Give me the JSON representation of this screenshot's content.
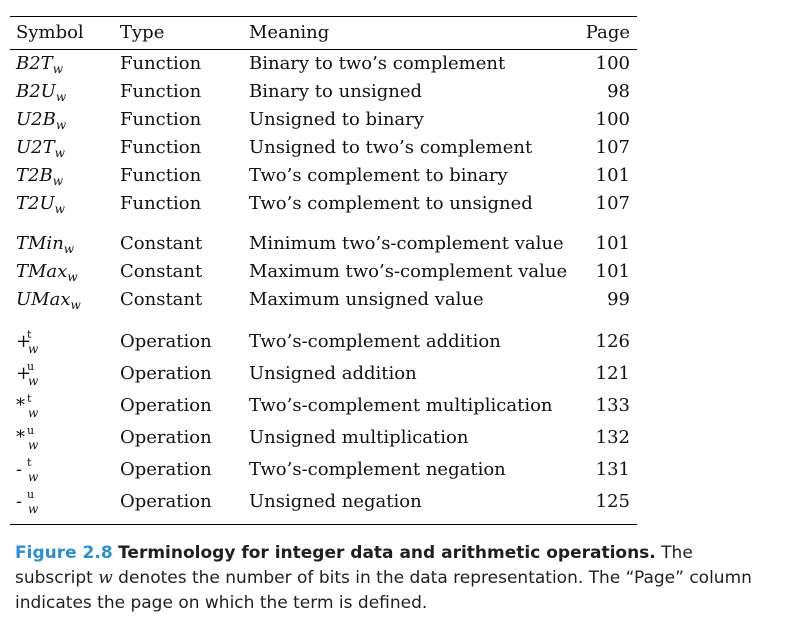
{
  "header": {
    "symbol": "Symbol",
    "type": "Type",
    "meaning": "Meaning",
    "page": "Page"
  },
  "functions": [
    {
      "base": "B2T",
      "sub": "w",
      "type": "Function",
      "meaning": "Binary to two’s complement",
      "page": "100"
    },
    {
      "base": "B2U",
      "sub": "w",
      "type": "Function",
      "meaning": "Binary to unsigned",
      "page": "98"
    },
    {
      "base": "U2B",
      "sub": "w",
      "type": "Function",
      "meaning": "Unsigned to binary",
      "page": "100"
    },
    {
      "base": "U2T",
      "sub": "w",
      "type": "Function",
      "meaning": "Unsigned to two’s complement",
      "page": "107"
    },
    {
      "base": "T2B",
      "sub": "w",
      "type": "Function",
      "meaning": "Two’s complement to binary",
      "page": "101"
    },
    {
      "base": "T2U",
      "sub": "w",
      "type": "Function",
      "meaning": "Two’s complement to unsigned",
      "page": "107"
    }
  ],
  "constants": [
    {
      "base": "TMin",
      "sub": "w",
      "type": "Constant",
      "meaning": "Minimum two’s-complement value",
      "page": "101"
    },
    {
      "base": "TMax",
      "sub": "w",
      "type": "Constant",
      "meaning": "Maximum two’s-complement value",
      "page": "101"
    },
    {
      "base": "UMax",
      "sub": "w",
      "type": "Constant",
      "meaning": "Maximum unsigned value",
      "page": "99"
    }
  ],
  "operations": [
    {
      "base": "+",
      "sup": "t",
      "sub": "w",
      "type": "Operation",
      "meaning": "Two’s-complement addition",
      "page": "126"
    },
    {
      "base": "+",
      "sup": "u",
      "sub": "w",
      "type": "Operation",
      "meaning": "Unsigned addition",
      "page": "121"
    },
    {
      "base": "*",
      "sup": "t",
      "sub": "w",
      "type": "Operation",
      "meaning": "Two’s-complement multiplication",
      "page": "133"
    },
    {
      "base": "*",
      "sup": "u",
      "sub": "w",
      "type": "Operation",
      "meaning": "Unsigned multiplication",
      "page": "132"
    },
    {
      "base": "-",
      "sup": "t",
      "sub": "w",
      "type": "Operation",
      "meaning": "Two’s-complement negation",
      "page": "131"
    },
    {
      "base": "-",
      "sup": "u",
      "sub": "w",
      "type": "Operation",
      "meaning": "Unsigned negation",
      "page": "125"
    }
  ],
  "caption": {
    "figure": "Figure 2.8",
    "title": "Terminology for integer data and arithmetic operations.",
    "text_before_w": " The subscript",
    "w": "w",
    "text_after_w": " denotes the number of bits in the data representation. The “Page” column indicates the page on which the term is defined.",
    "figure_color": "#2b8fd4"
  }
}
